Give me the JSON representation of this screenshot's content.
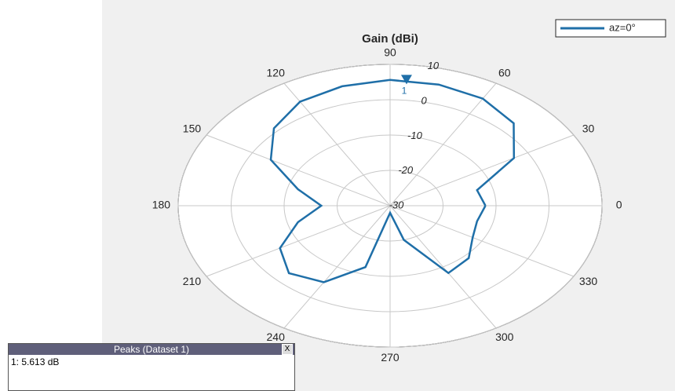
{
  "chart_data": {
    "type": "polar",
    "title": "Gain (dBi)",
    "theta": [
      0,
      15,
      30,
      45,
      60,
      75,
      90,
      105,
      120,
      135,
      150,
      165,
      180,
      195,
      210,
      225,
      240,
      255,
      270,
      285,
      300,
      315,
      330,
      345,
      360
    ],
    "series": [
      {
        "name": "az=0°",
        "color": "#1f6fa8",
        "values": [
          -12,
          -13,
          -3,
          3,
          5,
          5.5,
          5.6,
          5,
          4,
          1,
          -4,
          -12,
          -17,
          -12,
          -6,
          -3,
          -5,
          -12,
          -28,
          -20,
          -8,
          -9,
          -12,
          -13,
          -12
        ]
      }
    ],
    "rlim": [
      -30,
      10
    ],
    "rticks": [
      -30,
      -20,
      -10,
      0,
      10
    ],
    "thetaticks": [
      0,
      30,
      60,
      90,
      120,
      150,
      180,
      210,
      240,
      270,
      300,
      330
    ],
    "peak": {
      "label": "1",
      "theta": 85,
      "value": 5.613
    },
    "grid": true,
    "legend": "upper right"
  },
  "peaks_panel": {
    "title": "Peaks (Dataset 1)",
    "close": "X",
    "rows": [
      "1: 5.613 dB"
    ]
  }
}
